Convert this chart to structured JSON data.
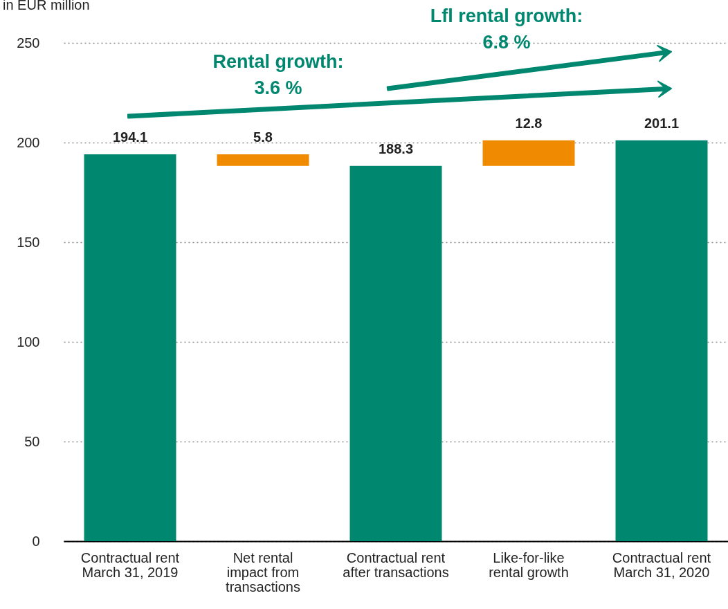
{
  "chart_data": {
    "type": "bar",
    "ylabel": "in EUR million",
    "categories": [
      "Contractual rent\nMarch 31, 2019",
      "Net rental\nimpact from\ntransactions",
      "Contractual rent\nafter transactions",
      "Like-for-like\nrental growth",
      "Contractual rent\nMarch 31, 2020"
    ],
    "values": [
      194.1,
      5.8,
      188.3,
      12.8,
      201.1
    ],
    "base": [
      0,
      188.3,
      0,
      188.3,
      0
    ],
    "colors": [
      "#008770",
      "#f08a00",
      "#008770",
      "#f08a00",
      "#008770"
    ],
    "ylim": [
      0,
      250
    ],
    "yticks": [
      0,
      50,
      100,
      150,
      200,
      250
    ],
    "grid": "y",
    "data_labels": true,
    "annotations": [
      "Rental growth:\n3.6 %",
      "Lfl rental growth:\n6.8 %"
    ]
  }
}
